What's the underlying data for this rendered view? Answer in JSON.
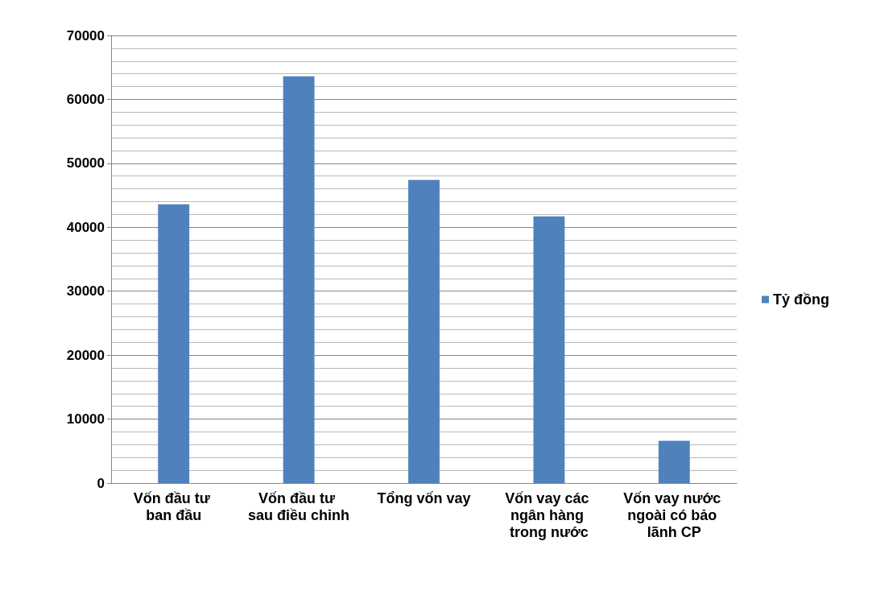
{
  "chart_data": {
    "type": "bar",
    "categories": [
      "Vốn đầu tư ban đầu",
      "Vốn đầu tư sau điều chỉnh",
      "Tổng vốn vay",
      "Vốn vay các ngân hàng trong nước",
      "Vốn vay nước ngoài có bảo lãnh CP"
    ],
    "series": [
      {
        "name": "Tỷ đồng",
        "color": "#4f81bd",
        "values": [
          43600,
          63600,
          47400,
          41700,
          6600
        ]
      }
    ],
    "ylim": [
      0,
      70000
    ],
    "yticks": [
      0,
      10000,
      20000,
      30000,
      40000,
      50000,
      60000,
      70000
    ],
    "grid": "y",
    "legend": "right"
  }
}
